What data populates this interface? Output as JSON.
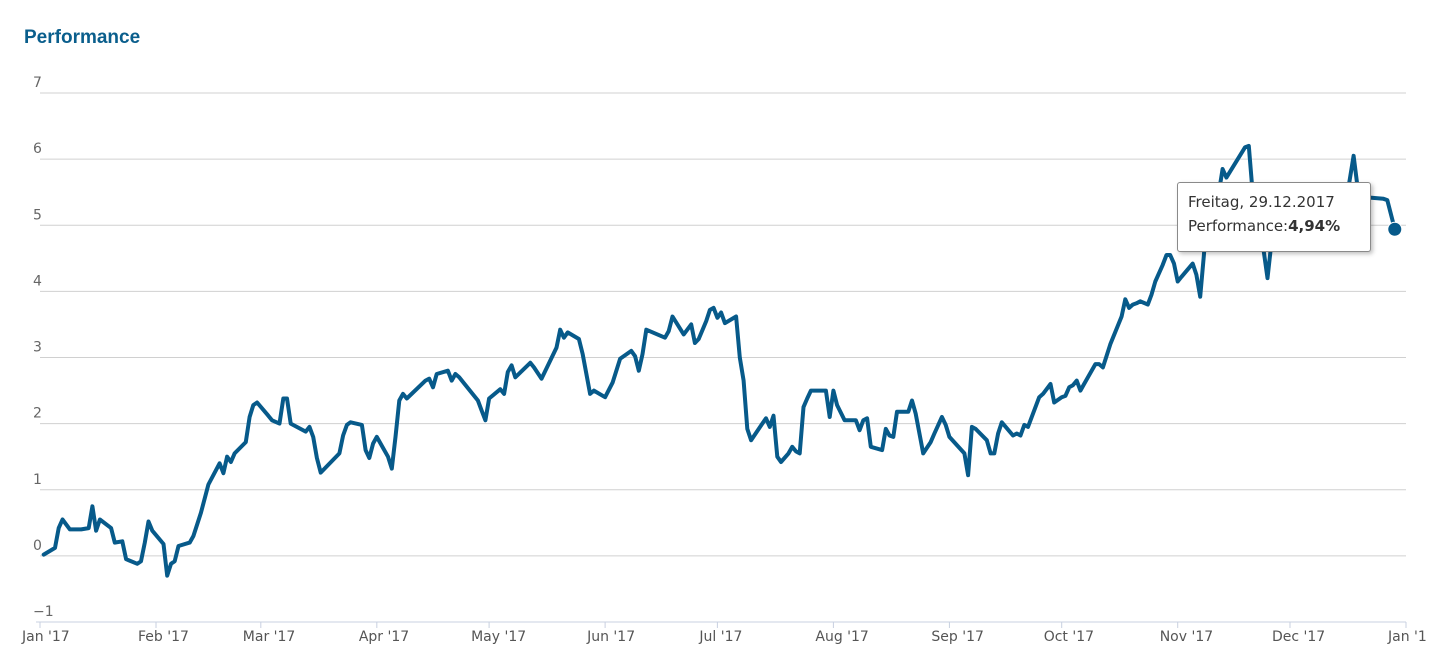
{
  "chart_data": {
    "type": "line",
    "title": "Performance",
    "ylim": [
      -1,
      7
    ],
    "yticks": [
      "7",
      "6",
      "5",
      "4",
      "3",
      "2",
      "1",
      "0",
      "−1"
    ],
    "ytick_values": [
      7,
      6,
      5,
      4,
      3,
      2,
      1,
      0,
      -1
    ],
    "xlim": [
      "2017-01-01",
      "2018-01-01"
    ],
    "xticks": [
      {
        "label": "Jan '17",
        "date": "2017-01-01"
      },
      {
        "label": "Feb '17",
        "date": "2017-02-01"
      },
      {
        "label": "Mar '17",
        "date": "2017-03-01"
      },
      {
        "label": "Apr '17",
        "date": "2017-04-01"
      },
      {
        "label": "May '17",
        "date": "2017-05-01"
      },
      {
        "label": "Jun '17",
        "date": "2017-06-01"
      },
      {
        "label": "Jul '17",
        "date": "2017-07-01"
      },
      {
        "label": "Aug '17",
        "date": "2017-08-01"
      },
      {
        "label": "Sep '17",
        "date": "2017-09-01"
      },
      {
        "label": "Oct '17",
        "date": "2017-10-01"
      },
      {
        "label": "Nov '17",
        "date": "2017-11-01"
      },
      {
        "label": "Dec '17",
        "date": "2017-12-01"
      },
      {
        "label": "Jan '1",
        "date": "2018-01-01"
      }
    ],
    "grid": true,
    "color": "#075a8a",
    "series": [
      {
        "points": [
          [
            "2017-01-02",
            0.02
          ],
          [
            "2017-01-05",
            0.12
          ],
          [
            "2017-01-06",
            0.42
          ],
          [
            "2017-01-07",
            0.55
          ],
          [
            "2017-01-09",
            0.4
          ],
          [
            "2017-01-12",
            0.4
          ],
          [
            "2017-01-14",
            0.42
          ],
          [
            "2017-01-15",
            0.75
          ],
          [
            "2017-01-16",
            0.38
          ],
          [
            "2017-01-17",
            0.55
          ],
          [
            "2017-01-20",
            0.42
          ],
          [
            "2017-01-21",
            0.2
          ],
          [
            "2017-01-23",
            0.22
          ],
          [
            "2017-01-24",
            -0.05
          ],
          [
            "2017-01-27",
            -0.12
          ],
          [
            "2017-01-28",
            -0.08
          ],
          [
            "2017-01-29",
            0.2
          ],
          [
            "2017-01-30",
            0.52
          ],
          [
            "2017-01-31",
            0.38
          ],
          [
            "2017-02-03",
            0.18
          ],
          [
            "2017-02-04",
            -0.3
          ],
          [
            "2017-02-05",
            -0.12
          ],
          [
            "2017-02-06",
            -0.08
          ],
          [
            "2017-02-07",
            0.15
          ],
          [
            "2017-02-10",
            0.2
          ],
          [
            "2017-02-11",
            0.3
          ],
          [
            "2017-02-13",
            0.65
          ],
          [
            "2017-02-15",
            1.08
          ],
          [
            "2017-02-18",
            1.4
          ],
          [
            "2017-02-19",
            1.25
          ],
          [
            "2017-02-20",
            1.5
          ],
          [
            "2017-02-21",
            1.42
          ],
          [
            "2017-02-22",
            1.55
          ],
          [
            "2017-02-25",
            1.72
          ],
          [
            "2017-02-26",
            2.1
          ],
          [
            "2017-02-27",
            2.28
          ],
          [
            "2017-02-28",
            2.32
          ],
          [
            "2017-03-03",
            2.12
          ],
          [
            "2017-03-04",
            2.05
          ],
          [
            "2017-03-06",
            2.0
          ],
          [
            "2017-03-07",
            2.38
          ],
          [
            "2017-03-08",
            2.38
          ],
          [
            "2017-03-09",
            2.0
          ],
          [
            "2017-03-13",
            1.88
          ],
          [
            "2017-03-14",
            1.95
          ],
          [
            "2017-03-15",
            1.8
          ],
          [
            "2017-03-16",
            1.48
          ],
          [
            "2017-03-17",
            1.26
          ],
          [
            "2017-03-22",
            1.55
          ],
          [
            "2017-03-23",
            1.82
          ],
          [
            "2017-03-24",
            1.98
          ],
          [
            "2017-03-25",
            2.02
          ],
          [
            "2017-03-28",
            1.98
          ],
          [
            "2017-03-29",
            1.6
          ],
          [
            "2017-03-30",
            1.48
          ],
          [
            "2017-03-31",
            1.7
          ],
          [
            "2017-04-01",
            1.8
          ],
          [
            "2017-04-04",
            1.5
          ],
          [
            "2017-04-05",
            1.32
          ],
          [
            "2017-04-06",
            1.8
          ],
          [
            "2017-04-07",
            2.35
          ],
          [
            "2017-04-08",
            2.45
          ],
          [
            "2017-04-09",
            2.38
          ],
          [
            "2017-04-14",
            2.65
          ],
          [
            "2017-04-15",
            2.68
          ],
          [
            "2017-04-16",
            2.55
          ],
          [
            "2017-04-17",
            2.75
          ],
          [
            "2017-04-20",
            2.8
          ],
          [
            "2017-04-21",
            2.65
          ],
          [
            "2017-04-22",
            2.75
          ],
          [
            "2017-04-23",
            2.7
          ],
          [
            "2017-04-28",
            2.35
          ],
          [
            "2017-04-29",
            2.2
          ],
          [
            "2017-04-30",
            2.05
          ],
          [
            "2017-05-01",
            2.38
          ],
          [
            "2017-05-04",
            2.52
          ],
          [
            "2017-05-05",
            2.45
          ],
          [
            "2017-05-06",
            2.78
          ],
          [
            "2017-05-07",
            2.88
          ],
          [
            "2017-05-08",
            2.7
          ],
          [
            "2017-05-12",
            2.92
          ],
          [
            "2017-05-13",
            2.85
          ],
          [
            "2017-05-15",
            2.68
          ],
          [
            "2017-05-19",
            3.15
          ],
          [
            "2017-05-20",
            3.42
          ],
          [
            "2017-05-21",
            3.3
          ],
          [
            "2017-05-22",
            3.38
          ],
          [
            "2017-05-25",
            3.28
          ],
          [
            "2017-05-26",
            3.05
          ],
          [
            "2017-05-28",
            2.45
          ],
          [
            "2017-05-29",
            2.5
          ],
          [
            "2017-06-01",
            2.4
          ],
          [
            "2017-06-03",
            2.62
          ],
          [
            "2017-06-05",
            2.98
          ],
          [
            "2017-06-08",
            3.1
          ],
          [
            "2017-06-09",
            3.02
          ],
          [
            "2017-06-10",
            2.8
          ],
          [
            "2017-06-11",
            3.05
          ],
          [
            "2017-06-12",
            3.42
          ],
          [
            "2017-06-17",
            3.3
          ],
          [
            "2017-06-18",
            3.4
          ],
          [
            "2017-06-19",
            3.62
          ],
          [
            "2017-06-22",
            3.35
          ],
          [
            "2017-06-24",
            3.5
          ],
          [
            "2017-06-25",
            3.22
          ],
          [
            "2017-06-26",
            3.28
          ],
          [
            "2017-06-28",
            3.55
          ],
          [
            "2017-06-29",
            3.72
          ],
          [
            "2017-06-30",
            3.75
          ],
          [
            "2017-07-01",
            3.6
          ],
          [
            "2017-07-02",
            3.68
          ],
          [
            "2017-07-03",
            3.52
          ],
          [
            "2017-07-06",
            3.62
          ],
          [
            "2017-07-07",
            3.0
          ],
          [
            "2017-07-08",
            2.65
          ],
          [
            "2017-07-09",
            1.92
          ],
          [
            "2017-07-10",
            1.75
          ],
          [
            "2017-07-13",
            2.0
          ],
          [
            "2017-07-14",
            2.08
          ],
          [
            "2017-07-15",
            1.95
          ],
          [
            "2017-07-16",
            2.12
          ],
          [
            "2017-07-17",
            1.5
          ],
          [
            "2017-07-18",
            1.42
          ],
          [
            "2017-07-20",
            1.55
          ],
          [
            "2017-07-21",
            1.65
          ],
          [
            "2017-07-22",
            1.58
          ],
          [
            "2017-07-23",
            1.55
          ],
          [
            "2017-07-24",
            2.25
          ],
          [
            "2017-07-25",
            2.38
          ],
          [
            "2017-07-26",
            2.5
          ],
          [
            "2017-07-30",
            2.5
          ],
          [
            "2017-07-31",
            2.1
          ],
          [
            "2017-08-01",
            2.5
          ],
          [
            "2017-08-02",
            2.28
          ],
          [
            "2017-08-04",
            2.05
          ],
          [
            "2017-08-07",
            2.05
          ],
          [
            "2017-08-08",
            1.9
          ],
          [
            "2017-08-09",
            2.05
          ],
          [
            "2017-08-10",
            2.08
          ],
          [
            "2017-08-11",
            1.65
          ],
          [
            "2017-08-14",
            1.6
          ],
          [
            "2017-08-15",
            1.92
          ],
          [
            "2017-08-16",
            1.82
          ],
          [
            "2017-08-17",
            1.8
          ],
          [
            "2017-08-18",
            2.18
          ],
          [
            "2017-08-21",
            2.18
          ],
          [
            "2017-08-22",
            2.35
          ],
          [
            "2017-08-23",
            2.15
          ],
          [
            "2017-08-25",
            1.55
          ],
          [
            "2017-08-27",
            1.72
          ],
          [
            "2017-08-28",
            1.85
          ],
          [
            "2017-08-30",
            2.1
          ],
          [
            "2017-08-31",
            1.98
          ],
          [
            "2017-09-01",
            1.8
          ],
          [
            "2017-09-05",
            1.55
          ],
          [
            "2017-09-06",
            1.22
          ],
          [
            "2017-09-07",
            1.95
          ],
          [
            "2017-09-08",
            1.92
          ],
          [
            "2017-09-11",
            1.75
          ],
          [
            "2017-09-12",
            1.55
          ],
          [
            "2017-09-13",
            1.55
          ],
          [
            "2017-09-14",
            1.85
          ],
          [
            "2017-09-15",
            2.02
          ],
          [
            "2017-09-18",
            1.82
          ],
          [
            "2017-09-19",
            1.85
          ],
          [
            "2017-09-20",
            1.82
          ],
          [
            "2017-09-21",
            1.98
          ],
          [
            "2017-09-22",
            1.95
          ],
          [
            "2017-09-25",
            2.4
          ],
          [
            "2017-09-26",
            2.45
          ],
          [
            "2017-09-28",
            2.6
          ],
          [
            "2017-09-29",
            2.32
          ],
          [
            "2017-10-01",
            2.4
          ],
          [
            "2017-10-02",
            2.42
          ],
          [
            "2017-10-03",
            2.55
          ],
          [
            "2017-10-04",
            2.58
          ],
          [
            "2017-10-05",
            2.65
          ],
          [
            "2017-10-06",
            2.5
          ],
          [
            "2017-10-07",
            2.6
          ],
          [
            "2017-10-10",
            2.9
          ],
          [
            "2017-10-11",
            2.9
          ],
          [
            "2017-10-12",
            2.85
          ],
          [
            "2017-10-14",
            3.2
          ],
          [
            "2017-10-17",
            3.62
          ],
          [
            "2017-10-18",
            3.88
          ],
          [
            "2017-10-19",
            3.75
          ],
          [
            "2017-10-20",
            3.8
          ],
          [
            "2017-10-21",
            3.82
          ],
          [
            "2017-10-22",
            3.85
          ],
          [
            "2017-10-24",
            3.8
          ],
          [
            "2017-10-25",
            3.95
          ],
          [
            "2017-10-26",
            4.15
          ],
          [
            "2017-10-28",
            4.4
          ],
          [
            "2017-10-29",
            4.55
          ],
          [
            "2017-10-30",
            4.55
          ],
          [
            "2017-10-31",
            4.42
          ],
          [
            "2017-11-01",
            4.15
          ],
          [
            "2017-11-02",
            4.22
          ],
          [
            "2017-11-05",
            4.42
          ],
          [
            "2017-11-06",
            4.25
          ],
          [
            "2017-11-07",
            3.92
          ],
          [
            "2017-11-08",
            4.55
          ],
          [
            "2017-11-09",
            5.28
          ],
          [
            "2017-11-11",
            5.3
          ],
          [
            "2017-11-12",
            5.5
          ],
          [
            "2017-11-13",
            5.85
          ],
          [
            "2017-11-14",
            5.72
          ],
          [
            "2017-11-19",
            6.18
          ],
          [
            "2017-11-20",
            6.2
          ],
          [
            "2017-11-21",
            5.5
          ],
          [
            "2017-11-23",
            5.1
          ],
          [
            "2017-11-24",
            4.6
          ],
          [
            "2017-11-25",
            4.2
          ],
          [
            "2017-11-26",
            4.72
          ],
          [
            "2017-11-28",
            4.85
          ],
          [
            "2017-11-30",
            5.25
          ],
          [
            "2017-12-01",
            5.42
          ],
          [
            "2017-12-03",
            5.2
          ],
          [
            "2017-12-05",
            4.95
          ],
          [
            "2017-12-07",
            5.1
          ],
          [
            "2017-12-09",
            4.82
          ],
          [
            "2017-12-10",
            5.15
          ],
          [
            "2017-12-12",
            5.4
          ],
          [
            "2017-12-14",
            5.52
          ],
          [
            "2017-12-16",
            5.35
          ],
          [
            "2017-12-18",
            6.05
          ],
          [
            "2017-12-20",
            5.15
          ],
          [
            "2017-12-22",
            5.42
          ],
          [
            "2017-12-26",
            5.4
          ],
          [
            "2017-12-27",
            5.38
          ],
          [
            "2017-12-29",
            4.94
          ]
        ]
      }
    ],
    "tooltip": {
      "date": "Freitag, 29.12.2017",
      "label": "Performance:",
      "value": "4,94%"
    }
  }
}
